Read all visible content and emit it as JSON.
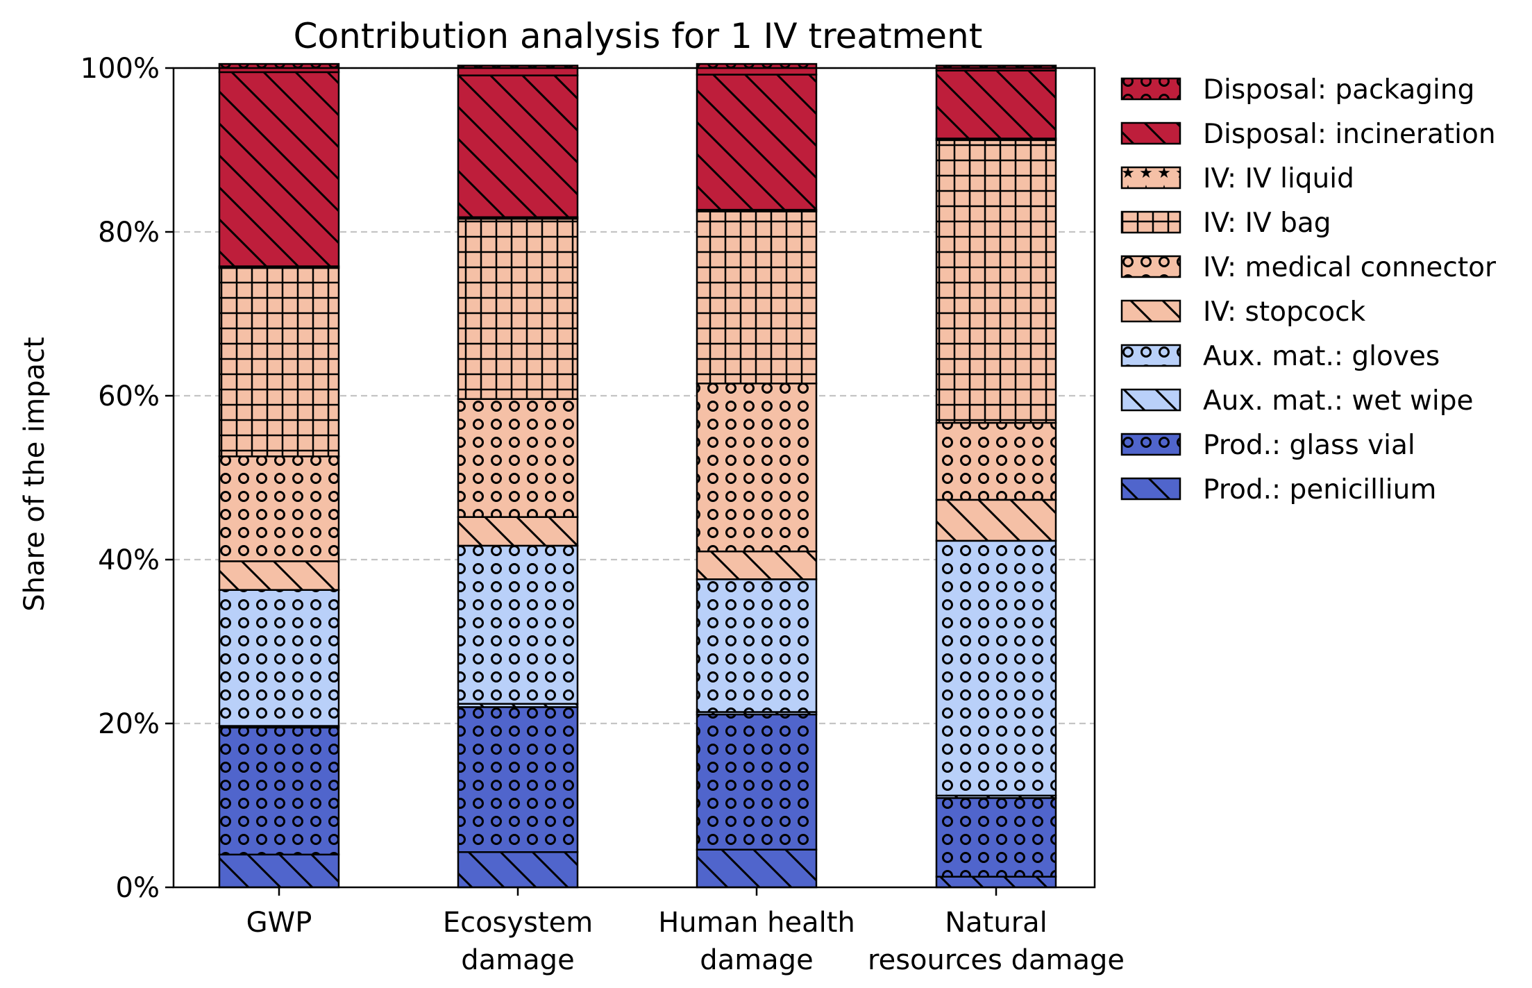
{
  "chart_data": {
    "type": "bar",
    "stacked": true,
    "title": "Contribution analysis for 1 IV treatment",
    "xlabel": "",
    "ylabel": "Share of the impact",
    "ylim": [
      0,
      1
    ],
    "y_ticks": [
      0,
      0.2,
      0.4,
      0.6,
      0.8,
      1.0
    ],
    "y_tick_labels": [
      "0%",
      "20%",
      "40%",
      "60%",
      "80%",
      "100%"
    ],
    "grid": "y dashed",
    "legend_position": "outside-right",
    "categories": [
      [
        "GWP"
      ],
      [
        "Ecosystem",
        "damage"
      ],
      [
        "Human health",
        "damage"
      ],
      [
        "Natural",
        "resources damage"
      ]
    ],
    "series": [
      {
        "name": "Prod.: penicillium",
        "color": "#5065cc",
        "hatch": "diagonal",
        "values": [
          0.04,
          0.043,
          0.046,
          0.013
        ]
      },
      {
        "name": "Prod.: glass vial",
        "color": "#5065cc",
        "hatch": "circles",
        "values": [
          0.155,
          0.177,
          0.165,
          0.096
        ]
      },
      {
        "name": "Aux. mat.: wet wipe",
        "color": "#b9d0f9",
        "hatch": "diagonal",
        "values": [
          0.002,
          0.004,
          0.003,
          0.003
        ]
      },
      {
        "name": "Aux. mat.: gloves",
        "color": "#b9d0f9",
        "hatch": "circles",
        "values": [
          0.166,
          0.193,
          0.162,
          0.311
        ]
      },
      {
        "name": "IV: stopcock",
        "color": "#f5c0a6",
        "hatch": "diagonal",
        "values": [
          0.035,
          0.035,
          0.034,
          0.05
        ]
      },
      {
        "name": "IV: medical connector",
        "color": "#f5c0a6",
        "hatch": "circles",
        "values": [
          0.128,
          0.144,
          0.205,
          0.094
        ]
      },
      {
        "name": "IV: IV bag",
        "color": "#f5c0a6",
        "hatch": "grid",
        "values": [
          0.23,
          0.22,
          0.21,
          0.345
        ]
      },
      {
        "name": "IV: IV liquid",
        "color": "#f5c0a6",
        "hatch": "stars",
        "values": [
          0.002,
          0.002,
          0.002,
          0.002
        ]
      },
      {
        "name": "Disposal: incineration",
        "color": "#be1e3b",
        "hatch": "diagonal",
        "values": [
          0.237,
          0.173,
          0.165,
          0.083
        ]
      },
      {
        "name": "Disposal: packaging",
        "color": "#be1e3b",
        "hatch": "circles",
        "values": [
          0.01,
          0.012,
          0.013,
          0.006
        ]
      }
    ]
  }
}
